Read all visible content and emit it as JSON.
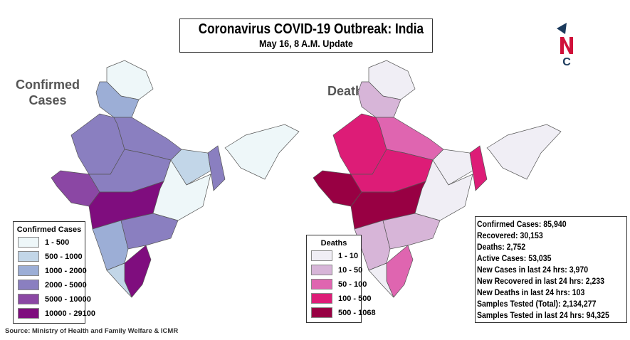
{
  "header": {
    "title": "Coronavirus COVID-19 Outbreak: India",
    "subtitle": "May 16, 8 A.M. Update"
  },
  "logo": {
    "letters": "NC",
    "colors": {
      "navy": "#1b3a5c",
      "red": "#d0103a"
    }
  },
  "cases_map": {
    "label_line1": "Confirmed",
    "label_line2": "Cases",
    "legend": {
      "title": "Confirmed Cases",
      "items": [
        {
          "label": "1 - 500",
          "color": "#eef7f9"
        },
        {
          "label": "500 - 1000",
          "color": "#c2d6e8"
        },
        {
          "label": "1000 - 2000",
          "color": "#9caed6"
        },
        {
          "label": "2000 - 5000",
          "color": "#8a7fc0"
        },
        {
          "label": "5000 - 10000",
          "color": "#8b47a4"
        },
        {
          "label": "10000 - 29100",
          "color": "#7f0d7e"
        }
      ]
    }
  },
  "deaths_map": {
    "label": "Deaths",
    "legend": {
      "title": "Deaths",
      "items": [
        {
          "label": "1 - 10",
          "color": "#f0eef5"
        },
        {
          "label": "10 - 50",
          "color": "#d7b5d8"
        },
        {
          "label": "50 - 100",
          "color": "#df65b0"
        },
        {
          "label": "100 - 500",
          "color": "#dd1c77"
        },
        {
          "label": "500 - 1068",
          "color": "#980043"
        }
      ]
    }
  },
  "regions": [
    {
      "id": "north-kashmir",
      "cases_level": 0,
      "deaths_level": 0
    },
    {
      "id": "north-hills",
      "cases_level": 2,
      "deaths_level": 1
    },
    {
      "id": "rajasthan",
      "cases_level": 3,
      "deaths_level": 3
    },
    {
      "id": "gujarat",
      "cases_level": 4,
      "deaths_level": 4
    },
    {
      "id": "uttar-pradesh",
      "cases_level": 3,
      "deaths_level": 2
    },
    {
      "id": "madhya-pradesh",
      "cases_level": 3,
      "deaths_level": 3
    },
    {
      "id": "maharashtra",
      "cases_level": 5,
      "deaths_level": 4
    },
    {
      "id": "bihar-jharkhand",
      "cases_level": 1,
      "deaths_level": 0
    },
    {
      "id": "central-east",
      "cases_level": 0,
      "deaths_level": 0
    },
    {
      "id": "west-bengal",
      "cases_level": 3,
      "deaths_level": 3
    },
    {
      "id": "karnataka",
      "cases_level": 2,
      "deaths_level": 1
    },
    {
      "id": "telangana-andhra",
      "cases_level": 3,
      "deaths_level": 1
    },
    {
      "id": "tamil-nadu",
      "cases_level": 5,
      "deaths_level": 2
    },
    {
      "id": "kerala",
      "cases_level": 1,
      "deaths_level": 0
    },
    {
      "id": "northeast",
      "cases_level": 0,
      "deaths_level": 0
    }
  ],
  "stats": [
    "Confirmed Cases: 85,940",
    "Recovered: 30,153",
    "Deaths: 2,752",
    "Active Cases:  53,035",
    "New Cases in last 24 hrs: 3,970",
    "New Recovered in last 24 hrs: 2,233",
    "New Deaths in last 24 hrs: 103",
    "Samples Tested (Total):  2,134,277",
    "Samples Tested in last 24 hrs: 94,325"
  ],
  "source": "Source: Ministry of Health and Family Welfare & ICMR"
}
